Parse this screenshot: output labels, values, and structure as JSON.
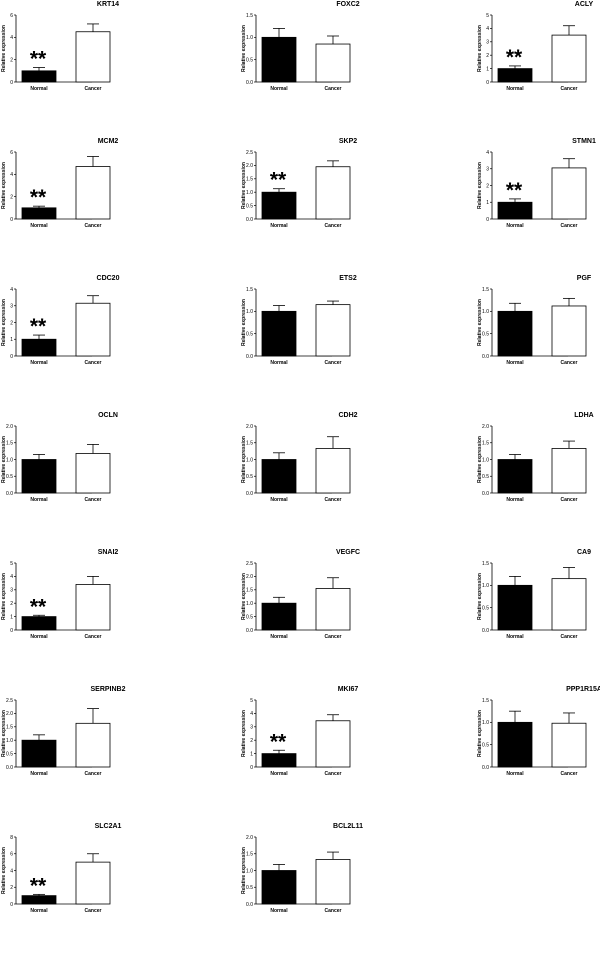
{
  "chart_data": [
    {
      "type": "bar",
      "title": "KRT14",
      "ylabel": "Relative expression",
      "categories": [
        "Normal",
        "Cancer"
      ],
      "values": [
        1.0,
        4.5
      ],
      "errors": [
        0.3,
        0.7
      ],
      "ylim": [
        0,
        6
      ],
      "yticks": [
        0,
        2,
        4,
        6
      ],
      "annotation": "**"
    },
    {
      "type": "bar",
      "title": "FOXC2",
      "ylabel": "Relative expression",
      "categories": [
        "Normal",
        "Cancer"
      ],
      "values": [
        1.0,
        0.85
      ],
      "errors": [
        0.2,
        0.18
      ],
      "ylim": [
        0,
        1.5
      ],
      "yticks": [
        0.0,
        0.5,
        1.0,
        1.5
      ],
      "annotation": ""
    },
    {
      "type": "bar",
      "title": "ACLY",
      "ylabel": "Relative expression",
      "categories": [
        "Normal",
        "Cancer"
      ],
      "values": [
        1.0,
        3.5
      ],
      "errors": [
        0.2,
        0.7
      ],
      "ylim": [
        0,
        5
      ],
      "yticks": [
        0,
        1,
        2,
        3,
        4,
        5
      ],
      "annotation": "**"
    },
    {
      "type": "bar",
      "title": "MCM2",
      "ylabel": "Relative expression",
      "categories": [
        "Normal",
        "Cancer"
      ],
      "values": [
        1.0,
        4.7
      ],
      "errors": [
        0.15,
        0.9
      ],
      "ylim": [
        0,
        6
      ],
      "yticks": [
        0,
        2,
        4,
        6
      ],
      "annotation": "**"
    },
    {
      "type": "bar",
      "title": "SKP2",
      "ylabel": "Relative expression",
      "categories": [
        "Normal",
        "Cancer"
      ],
      "values": [
        1.0,
        1.95
      ],
      "errors": [
        0.13,
        0.22
      ],
      "ylim": [
        0,
        2.5
      ],
      "yticks": [
        0.0,
        0.5,
        1.0,
        1.5,
        2.0,
        2.5
      ],
      "annotation": "**"
    },
    {
      "type": "bar",
      "title": "STMN1",
      "ylabel": "Relative expression",
      "categories": [
        "Normal",
        "Cancer"
      ],
      "values": [
        1.0,
        3.05
      ],
      "errors": [
        0.2,
        0.55
      ],
      "ylim": [
        0,
        4
      ],
      "yticks": [
        0,
        1,
        2,
        3,
        4
      ],
      "annotation": "**"
    },
    {
      "type": "bar",
      "title": "CDC20",
      "ylabel": "Relative expression",
      "categories": [
        "Normal",
        "Cancer"
      ],
      "values": [
        1.0,
        3.15
      ],
      "errors": [
        0.25,
        0.45
      ],
      "ylim": [
        0,
        4
      ],
      "yticks": [
        0,
        1,
        2,
        3,
        4
      ],
      "annotation": "**"
    },
    {
      "type": "bar",
      "title": "ETS2",
      "ylabel": "Relative expression",
      "categories": [
        "Normal",
        "Cancer"
      ],
      "values": [
        1.0,
        1.15
      ],
      "errors": [
        0.13,
        0.08
      ],
      "ylim": [
        0,
        1.5
      ],
      "yticks": [
        0.0,
        0.5,
        1.0,
        1.5
      ],
      "annotation": ""
    },
    {
      "type": "bar",
      "title": "PGF",
      "ylabel": "Relative expression",
      "categories": [
        "Normal",
        "Cancer"
      ],
      "values": [
        1.0,
        1.12
      ],
      "errors": [
        0.18,
        0.17
      ],
      "ylim": [
        0,
        1.5
      ],
      "yticks": [
        0.0,
        0.5,
        1.0,
        1.5
      ],
      "annotation": ""
    },
    {
      "type": "bar",
      "title": "OCLN",
      "ylabel": "Relative expression",
      "categories": [
        "Normal",
        "Cancer"
      ],
      "values": [
        1.0,
        1.18
      ],
      "errors": [
        0.15,
        0.27
      ],
      "ylim": [
        0,
        2.0
      ],
      "yticks": [
        0.0,
        0.5,
        1.0,
        1.5,
        2.0
      ],
      "annotation": ""
    },
    {
      "type": "bar",
      "title": "CDH2",
      "ylabel": "Relative expression",
      "categories": [
        "Normal",
        "Cancer"
      ],
      "values": [
        1.0,
        1.33
      ],
      "errors": [
        0.2,
        0.35
      ],
      "ylim": [
        0,
        2.0
      ],
      "yticks": [
        0.0,
        0.5,
        1.0,
        1.5,
        2.0
      ],
      "annotation": ""
    },
    {
      "type": "bar",
      "title": "LDHA",
      "ylabel": "Relative expression",
      "categories": [
        "Normal",
        "Cancer"
      ],
      "values": [
        1.0,
        1.33
      ],
      "errors": [
        0.15,
        0.22
      ],
      "ylim": [
        0,
        2.0
      ],
      "yticks": [
        0.0,
        0.5,
        1.0,
        1.5,
        2.0
      ],
      "annotation": ""
    },
    {
      "type": "bar",
      "title": "SNAI2",
      "ylabel": "Relative expression",
      "categories": [
        "Normal",
        "Cancer"
      ],
      "values": [
        1.0,
        3.4
      ],
      "errors": [
        0.1,
        0.6
      ],
      "ylim": [
        0,
        5
      ],
      "yticks": [
        0,
        1,
        2,
        3,
        4,
        5
      ],
      "annotation": "**"
    },
    {
      "type": "bar",
      "title": "VEGFC",
      "ylabel": "Relative expression",
      "categories": [
        "Normal",
        "Cancer"
      ],
      "values": [
        1.0,
        1.55
      ],
      "errors": [
        0.22,
        0.4
      ],
      "ylim": [
        0,
        2.5
      ],
      "yticks": [
        0.0,
        0.5,
        1.0,
        1.5,
        2.0,
        2.5
      ],
      "annotation": ""
    },
    {
      "type": "bar",
      "title": "CA9",
      "ylabel": "Relative expression",
      "categories": [
        "Normal",
        "Cancer"
      ],
      "values": [
        1.0,
        1.15
      ],
      "errors": [
        0.2,
        0.25
      ],
      "ylim": [
        0,
        1.5
      ],
      "yticks": [
        0.0,
        0.5,
        1.0,
        1.5
      ],
      "annotation": ""
    },
    {
      "type": "bar",
      "title": "SERPINB2",
      "ylabel": "Relative expression",
      "categories": [
        "Normal",
        "Cancer"
      ],
      "values": [
        1.0,
        1.63
      ],
      "errors": [
        0.2,
        0.55
      ],
      "ylim": [
        0,
        2.5
      ],
      "yticks": [
        0.0,
        0.5,
        1.0,
        1.5,
        2.0,
        2.5
      ],
      "annotation": ""
    },
    {
      "type": "bar",
      "title": "MKI67",
      "ylabel": "Relative expression",
      "categories": [
        "Normal",
        "Cancer"
      ],
      "values": [
        1.0,
        3.45
      ],
      "errors": [
        0.25,
        0.45
      ],
      "ylim": [
        0,
        5
      ],
      "yticks": [
        0,
        1,
        2,
        3,
        4,
        5
      ],
      "annotation": "**"
    },
    {
      "type": "bar",
      "title": "PPP1R15A",
      "ylabel": "Relative expression",
      "categories": [
        "Normal",
        "Cancer"
      ],
      "values": [
        1.0,
        0.98
      ],
      "errors": [
        0.25,
        0.23
      ],
      "ylim": [
        0,
        1.5
      ],
      "yticks": [
        0.0,
        0.5,
        1.0,
        1.5
      ],
      "annotation": ""
    },
    {
      "type": "bar",
      "title": "SLC2A1",
      "ylabel": "Relative expression",
      "categories": [
        "Normal",
        "Cancer"
      ],
      "values": [
        1.0,
        5.0
      ],
      "errors": [
        0.15,
        1.0
      ],
      "ylim": [
        0,
        8
      ],
      "yticks": [
        0,
        2,
        4,
        6,
        8
      ],
      "annotation": "**"
    },
    {
      "type": "bar",
      "title": "BCL2L11",
      "ylabel": "Relative expression",
      "categories": [
        "Normal",
        "Cancer"
      ],
      "values": [
        1.0,
        1.33
      ],
      "errors": [
        0.18,
        0.22
      ],
      "ylim": [
        0,
        2.0
      ],
      "yticks": [
        0.0,
        0.5,
        1.0,
        1.5,
        2.0
      ],
      "annotation": ""
    }
  ]
}
